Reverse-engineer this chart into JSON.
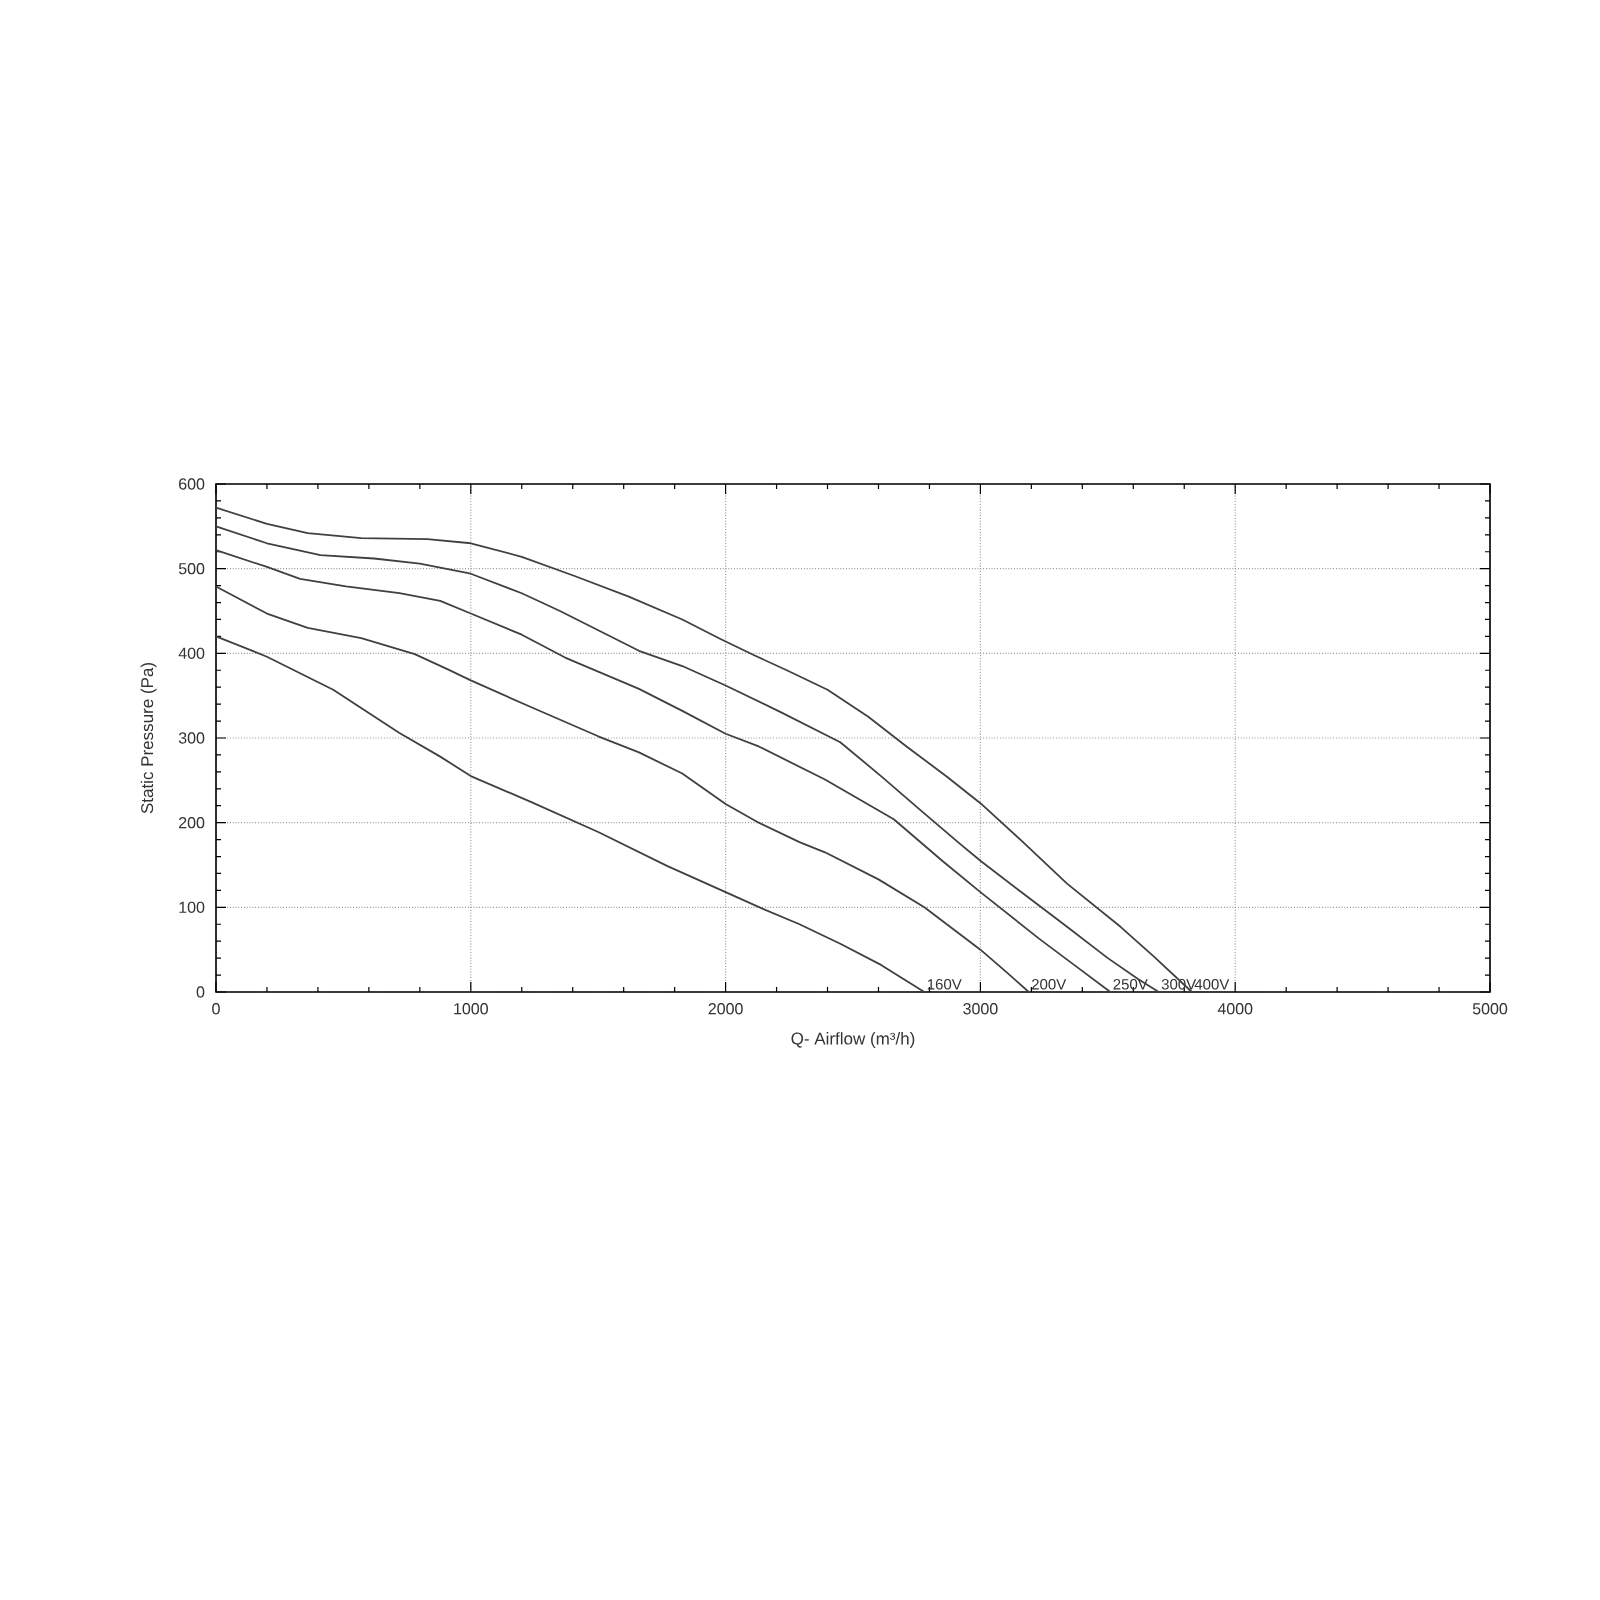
{
  "chart_data": {
    "type": "line",
    "xlabel": "Q- Airflow (m³/h)",
    "ylabel": "Static Pressure (Pa)",
    "xlim": [
      0,
      5000
    ],
    "ylim": [
      0,
      600
    ],
    "xticks": [
      0,
      1000,
      2000,
      3000,
      4000,
      5000
    ],
    "yticks": [
      0,
      100,
      200,
      300,
      400,
      500,
      600
    ],
    "grid": true,
    "marker": "none",
    "line_style": "solid",
    "series": [
      {
        "name": "160V",
        "color": "#404040",
        "x": [
          0,
          200,
          460,
          720,
          880,
          1000,
          1240,
          1500,
          1770,
          2000,
          2140,
          2290,
          2450,
          2610,
          2780
        ],
        "values": [
          420,
          396,
          357,
          306,
          278,
          255,
          224,
          189,
          149,
          118,
          99,
          80,
          57,
          32,
          0
        ]
      },
      {
        "name": "200V",
        "color": "#404040",
        "x": [
          0,
          200,
          360,
          570,
          780,
          910,
          1000,
          1240,
          1500,
          1660,
          1830,
          2000,
          2130,
          2290,
          2390,
          2600,
          2780,
          3000,
          3100,
          3190
        ],
        "values": [
          479,
          447,
          430,
          418,
          399,
          381,
          368,
          336,
          302,
          283,
          258,
          222,
          200,
          177,
          165,
          133,
          100,
          50,
          24,
          0
        ]
      },
      {
        "name": "250V",
        "color": "#404040",
        "x": [
          0,
          200,
          330,
          510,
          720,
          880,
          1000,
          1200,
          1370,
          1660,
          1830,
          2000,
          2130,
          2390,
          2660,
          2850,
          3000,
          3230,
          3390,
          3510
        ],
        "values": [
          522,
          502,
          488,
          479,
          471,
          462,
          447,
          422,
          395,
          358,
          332,
          305,
          290,
          251,
          204,
          155,
          118,
          63,
          27,
          0
        ]
      },
      {
        "name": "300V",
        "color": "#404040",
        "x": [
          0,
          200,
          410,
          620,
          800,
          1000,
          1200,
          1350,
          1660,
          1830,
          2000,
          2220,
          2450,
          2610,
          2760,
          2920,
          3000,
          3160,
          3340,
          3500,
          3620,
          3700
        ],
        "values": [
          550,
          530,
          516,
          512,
          506,
          494,
          471,
          450,
          403,
          385,
          362,
          330,
          295,
          255,
          216,
          175,
          155,
          118,
          77,
          40,
          15,
          0
        ]
      },
      {
        "name": "400V",
        "color": "#404040",
        "x": [
          0,
          200,
          360,
          570,
          830,
          1000,
          1200,
          1410,
          1620,
          1830,
          1980,
          2110,
          2240,
          2400,
          2560,
          2710,
          2870,
          3000,
          3160,
          3340,
          3550,
          3680,
          3830
        ],
        "values": [
          572,
          553,
          542,
          536,
          535,
          530,
          514,
          491,
          467,
          440,
          417,
          398,
          380,
          357,
          325,
          290,
          254,
          223,
          179,
          128,
          77,
          42,
          0
        ]
      }
    ]
  }
}
